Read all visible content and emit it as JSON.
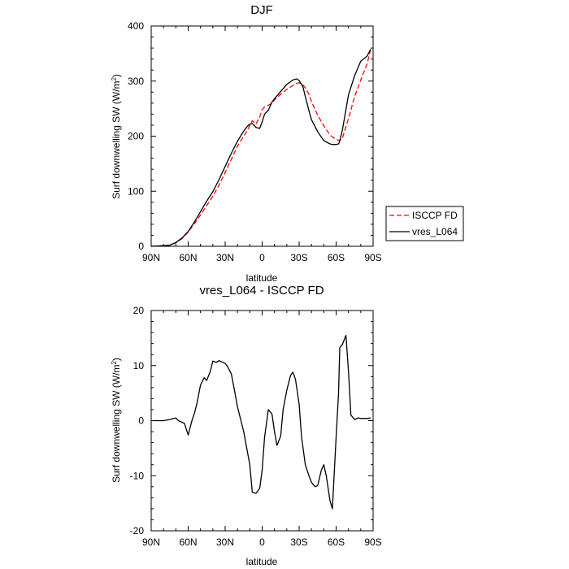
{
  "chart_data": [
    {
      "type": "line",
      "title": "DJF",
      "xlabel": "latitude",
      "ylabel": "Surf downwelling SW (W/m",
      "ylabel_sup": "2",
      "ylabel_close": ")",
      "xlim": [
        -90,
        90
      ],
      "ylim": [
        0,
        400
      ],
      "xticks": [
        -90,
        -60,
        -30,
        0,
        30,
        60,
        90
      ],
      "xtick_labels": [
        "90N",
        "60N",
        "30N",
        "0",
        "30S",
        "60S",
        "90S"
      ],
      "yticks": [
        0,
        100,
        200,
        300,
        400
      ],
      "ytick_labels": [
        "0",
        "100",
        "200",
        "300",
        "400"
      ],
      "legend": [
        "ISCCP FD",
        "vres_L064"
      ],
      "series": [
        {
          "name": "ISCCP FD",
          "color": "#ff0000",
          "dash": true,
          "x": [
            -90,
            -80,
            -75,
            -70,
            -65,
            -60,
            -55,
            -50,
            -45,
            -40,
            -35,
            -30,
            -25,
            -20,
            -15,
            -12,
            -10,
            -8,
            -5,
            -2,
            0,
            2,
            5,
            8,
            10,
            15,
            20,
            25,
            28,
            30,
            33,
            35,
            38,
            40,
            45,
            50,
            55,
            60,
            63,
            65,
            70,
            75,
            80,
            85,
            88
          ],
          "values": [
            0,
            1,
            2,
            6,
            14,
            26,
            41,
            57,
            74,
            91,
            111,
            134,
            158,
            182,
            200,
            210,
            220,
            228,
            222,
            235,
            248,
            253,
            256,
            260,
            266,
            276,
            285,
            292,
            296,
            297,
            293,
            288,
            276,
            263,
            238,
            219,
            202,
            194,
            192,
            196,
            232,
            272,
            302,
            330,
            357
          ]
        },
        {
          "name": "vres_L064",
          "color": "#000000",
          "dash": false,
          "x": [
            -90,
            -80,
            -75,
            -70,
            -65,
            -60,
            -55,
            -50,
            -45,
            -40,
            -35,
            -30,
            -25,
            -20,
            -15,
            -12,
            -10,
            -8,
            -5,
            -2,
            0,
            2,
            5,
            8,
            10,
            15,
            20,
            25,
            28,
            30,
            33,
            35,
            38,
            40,
            45,
            50,
            55,
            57,
            60,
            62,
            63,
            65,
            70,
            75,
            80,
            85,
            88
          ],
          "values": [
            0,
            1,
            2,
            7,
            15,
            27,
            44,
            63,
            82,
            99,
            121,
            145,
            169,
            191,
            209,
            218,
            222,
            223,
            216,
            214,
            226,
            240,
            247,
            262,
            268,
            281,
            294,
            302,
            304,
            301,
            290,
            272,
            246,
            230,
            208,
            192,
            186,
            185,
            185,
            186,
            192,
            210,
            275,
            310,
            336,
            345,
            358
          ]
        }
      ]
    },
    {
      "type": "line",
      "title": "vres_L064 - ISCCP FD",
      "xlabel": "latitude",
      "ylabel": "Surf downwelling SW (W/m",
      "ylabel_sup": "2",
      "ylabel_close": ")",
      "xlim": [
        -90,
        90
      ],
      "ylim": [
        -20,
        20
      ],
      "xticks": [
        -90,
        -60,
        -30,
        0,
        30,
        60,
        90
      ],
      "xtick_labels": [
        "90N",
        "60N",
        "30N",
        "0",
        "30S",
        "60S",
        "90S"
      ],
      "yticks": [
        -20,
        -10,
        0,
        10,
        20
      ],
      "ytick_labels": [
        "-20",
        "-10",
        "0",
        "10",
        "20"
      ],
      "series": [
        {
          "name": "vres_L064 - ISCCP FD",
          "color": "#000000",
          "dash": false,
          "x": [
            -88,
            -80,
            -75,
            -70,
            -68,
            -65,
            -63,
            -60,
            -57,
            -55,
            -53,
            -50,
            -47,
            -45,
            -42,
            -40,
            -37,
            -35,
            -32,
            -30,
            -28,
            -25,
            -22,
            -20,
            -15,
            -10,
            -8,
            -5,
            -2,
            0,
            2,
            5,
            8,
            10,
            12,
            15,
            17,
            20,
            23,
            25,
            27,
            30,
            32,
            35,
            38,
            40,
            43,
            45,
            48,
            50,
            52,
            55,
            57,
            60,
            62,
            63,
            65,
            68,
            70,
            72,
            75,
            78,
            80,
            82,
            85,
            88
          ],
          "values": [
            0,
            0,
            0.2,
            0.5,
            0,
            -0.3,
            -0.5,
            -2.6,
            0,
            1.3,
            3,
            6.5,
            7.8,
            7.3,
            9,
            10.8,
            10.6,
            10.9,
            10.6,
            10.4,
            9.8,
            8.5,
            5,
            2.5,
            -2,
            -8,
            -13,
            -13.2,
            -12.3,
            -9,
            -3,
            2,
            1.2,
            -2,
            -4.5,
            -2.8,
            2,
            5.5,
            8.2,
            8.8,
            7.5,
            3,
            -3,
            -8,
            -10,
            -11.2,
            -12,
            -11.8,
            -9,
            -8,
            -10,
            -14.5,
            -16,
            -3,
            5,
            13.3,
            13.8,
            15.5,
            9,
            1,
            0.2,
            0.5,
            0.4,
            0.4,
            0.4,
            0.5
          ]
        }
      ]
    }
  ]
}
